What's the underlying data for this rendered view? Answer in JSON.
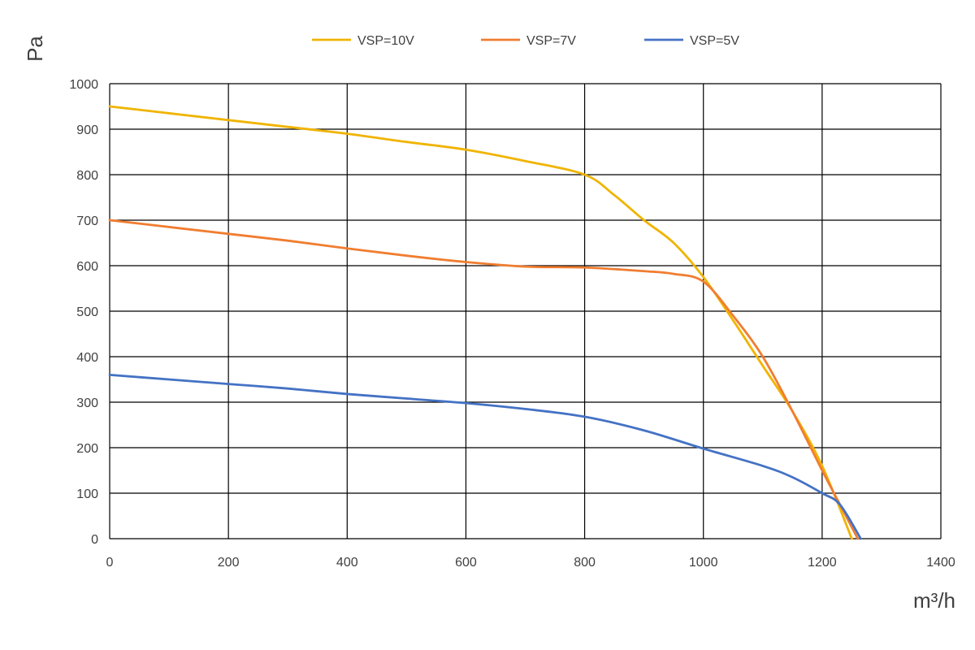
{
  "chart_data": {
    "type": "line",
    "title": "",
    "xlabel": "m³/h",
    "ylabel": "Pa",
    "xlim": [
      0,
      1400
    ],
    "ylim": [
      0,
      1000
    ],
    "xticks": [
      0,
      200,
      400,
      600,
      800,
      1000,
      1200,
      1400
    ],
    "yticks": [
      0,
      100,
      200,
      300,
      400,
      500,
      600,
      700,
      800,
      900,
      1000
    ],
    "grid": true,
    "legend_position": "top",
    "series": [
      {
        "name": "VSP=10V",
        "color": "#f0b400",
        "x": [
          0,
          100,
          200,
          300,
          400,
          500,
          600,
          700,
          800,
          850,
          900,
          950,
          1000,
          1050,
          1100,
          1150,
          1200,
          1250
        ],
        "y": [
          950,
          935,
          920,
          905,
          890,
          872,
          855,
          830,
          800,
          755,
          700,
          650,
          575,
          480,
          380,
          280,
          160,
          0
        ]
      },
      {
        "name": "VSP=7V",
        "color": "#f07d30",
        "x": [
          0,
          100,
          200,
          300,
          400,
          500,
          600,
          700,
          800,
          900,
          950,
          1000,
          1050,
          1100,
          1150,
          1200,
          1230,
          1260
        ],
        "y": [
          700,
          685,
          670,
          655,
          638,
          622,
          608,
          598,
          596,
          588,
          582,
          565,
          490,
          400,
          280,
          150,
          75,
          0
        ]
      },
      {
        "name": "VSP=5V",
        "color": "#4472c4",
        "x": [
          0,
          100,
          200,
          300,
          400,
          500,
          600,
          700,
          800,
          900,
          1000,
          1100,
          1150,
          1200,
          1230,
          1265
        ],
        "y": [
          360,
          350,
          340,
          330,
          318,
          308,
          298,
          285,
          268,
          238,
          198,
          160,
          135,
          100,
          75,
          0
        ]
      }
    ]
  }
}
